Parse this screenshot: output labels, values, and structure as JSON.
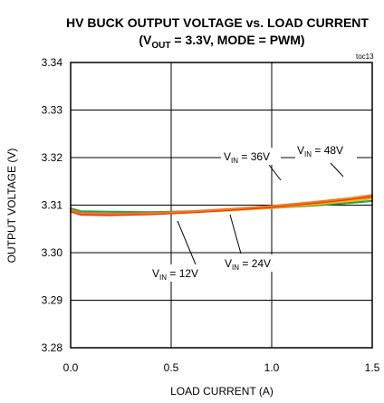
{
  "chart_data": {
    "type": "line",
    "title_line1": "HV BUCK OUTPUT VOLTAGE vs. LOAD CURRENT",
    "title_line2": {
      "open": "(V",
      "sub": "OUT",
      "rest": " = 3.3V, MODE = PWM)"
    },
    "figure_id": "toc13",
    "xlabel": "LOAD CURRENT  (A)",
    "ylabel": "OUTPUT  VOLTAGE  (V)",
    "xlim": [
      0.0,
      1.5
    ],
    "ylim": [
      3.28,
      3.34
    ],
    "x_ticks": [
      "0.0",
      "0.5",
      "1.0",
      "1.5"
    ],
    "y_ticks": [
      "3.28",
      "3.29",
      "3.30",
      "3.31",
      "3.32",
      "3.33",
      "3.34"
    ],
    "grid": true,
    "series": [
      {
        "name": "VIN = 12V",
        "color": "#2e9e4a",
        "x": [
          0.0,
          0.05,
          0.2,
          0.4,
          0.6,
          0.8,
          1.0,
          1.2,
          1.4,
          1.5
        ],
        "y": [
          3.3093,
          3.3087,
          3.3086,
          3.3085,
          3.3087,
          3.309,
          3.3094,
          3.3099,
          3.3105,
          3.3109
        ]
      },
      {
        "name": "VIN = 24V",
        "color": "#f5b700",
        "x": [
          0.0,
          0.05,
          0.2,
          0.4,
          0.6,
          0.8,
          1.0,
          1.2,
          1.4,
          1.5
        ],
        "y": [
          3.3089,
          3.3082,
          3.3081,
          3.3082,
          3.3085,
          3.3089,
          3.3094,
          3.3101,
          3.3109,
          3.3114
        ]
      },
      {
        "name": "VIN = 36V",
        "color": "#e8321e",
        "x": [
          0.0,
          0.05,
          0.2,
          0.4,
          0.6,
          0.8,
          1.0,
          1.2,
          1.4,
          1.5
        ],
        "y": [
          3.3087,
          3.308,
          3.3079,
          3.3081,
          3.3085,
          3.309,
          3.3096,
          3.3104,
          3.3113,
          3.3118
        ]
      },
      {
        "name": "VIN = 48V",
        "color": "#f07a1a",
        "x": [
          0.0,
          0.05,
          0.2,
          0.4,
          0.6,
          0.8,
          1.0,
          1.2,
          1.4,
          1.5
        ],
        "y": [
          3.309,
          3.3083,
          3.3082,
          3.3083,
          3.3087,
          3.3092,
          3.3098,
          3.3106,
          3.3115,
          3.3121
        ]
      }
    ],
    "annotations": [
      {
        "id": "ann-36v",
        "main": "V",
        "sub": "IN",
        "rest": " = 36V",
        "target_series": "VIN = 36V"
      },
      {
        "id": "ann-48v",
        "main": "V",
        "sub": "IN",
        "rest": " = 48V",
        "target_series": "VIN = 48V"
      },
      {
        "id": "ann-12v",
        "main": "V",
        "sub": "IN",
        "rest": " = 12V",
        "target_series": "VIN = 12V"
      },
      {
        "id": "ann-24v",
        "main": "V",
        "sub": "IN",
        "rest": " = 24V",
        "target_series": "VIN = 24V"
      }
    ]
  }
}
